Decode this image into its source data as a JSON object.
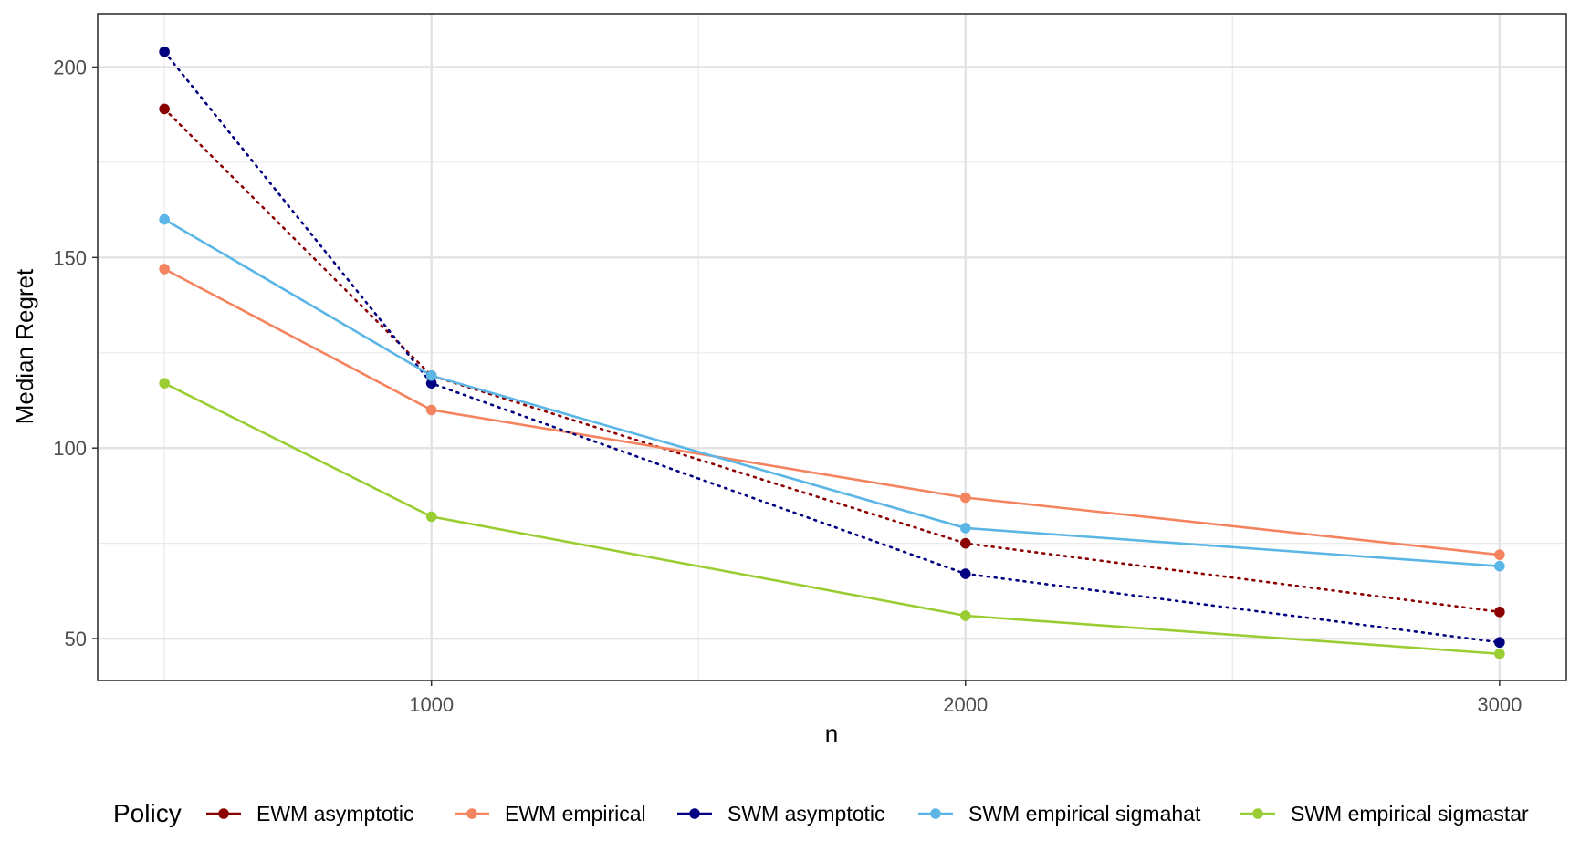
{
  "chart_data": {
    "type": "line",
    "title": "",
    "xlabel": "n",
    "ylabel": "Median Regret",
    "x": [
      500,
      1000,
      2000,
      3000
    ],
    "xlim": [
      375,
      3125
    ],
    "ylim": [
      39,
      214
    ],
    "x_ticks": [
      1000,
      2000,
      3000
    ],
    "x_tick_labels": [
      "1000",
      "2000",
      "3000"
    ],
    "x_minor_ticks": [
      500,
      1500,
      2500
    ],
    "y_ticks": [
      50,
      100,
      150,
      200
    ],
    "y_tick_labels": [
      "50",
      "100",
      "150",
      "200"
    ],
    "y_minor_ticks": [
      75,
      125,
      175
    ],
    "grid": true,
    "legend_position": "bottom",
    "legend_title": "Policy",
    "series": [
      {
        "name": "EWM asymptotic",
        "color": "#8b0000",
        "linestyle": "dotted",
        "values": [
          189,
          119,
          75,
          57
        ]
      },
      {
        "name": "EWM empirical",
        "color": "#f4845f",
        "linestyle": "solid",
        "values": [
          147,
          110,
          87,
          72
        ]
      },
      {
        "name": "SWM asymptotic",
        "color": "#000080",
        "linestyle": "dotted",
        "values": [
          204,
          117,
          67,
          49
        ]
      },
      {
        "name": "SWM empirical sigmahat",
        "color": "#5bb6e6",
        "linestyle": "solid",
        "values": [
          160,
          119,
          79,
          69
        ]
      },
      {
        "name": "SWM empirical sigmastar",
        "color": "#9acd32",
        "linestyle": "solid",
        "values": [
          117,
          82,
          56,
          46
        ]
      }
    ]
  }
}
